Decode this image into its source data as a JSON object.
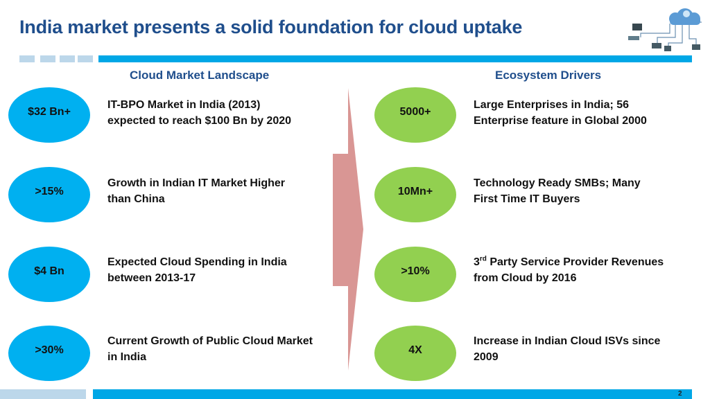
{
  "title": "India market presents a solid foundation for cloud uptake",
  "left_heading": "Cloud Market Landscape",
  "right_heading": "Ecosystem Drivers",
  "colors": {
    "accent": "#00a7e6",
    "title": "#1f4e8c",
    "blue_bubble": "#00b0f0",
    "green_bubble": "#92d050",
    "arrow": "#d99694"
  },
  "left_items": [
    {
      "value": "$32 Bn+",
      "line1": "IT-BPO Market in India (2013)",
      "line2": "expected to reach $100 Bn by 2020"
    },
    {
      "value": ">15%",
      "line1": "Growth in Indian IT Market Higher",
      "line2": "than China"
    },
    {
      "value": "$4 Bn",
      "line1": "Expected Cloud Spending in India",
      "line2": "between 2013-17"
    },
    {
      "value": ">30%",
      "line1": "Current Growth of Public Cloud Market",
      "line2": "in India"
    }
  ],
  "right_items": [
    {
      "value": "5000+",
      "line1": "Large Enterprises in India; 56",
      "line2": "Enterprise feature in Global 2000"
    },
    {
      "value": "10Mn+",
      "line1": "Technology Ready SMBs; Many",
      "line2": "First Time IT Buyers"
    },
    {
      "value": ">10%",
      "line1_pre": "3",
      "line1_sup": "rd",
      "line1_post": " Party Service Provider Revenues",
      "line2": "from Cloud by 2016"
    },
    {
      "value": "4X",
      "line1": "Increase in Indian Cloud ISVs since",
      "line2": "2009"
    }
  ],
  "page_number": "2",
  "logo_icon": "cloud-network-icon"
}
